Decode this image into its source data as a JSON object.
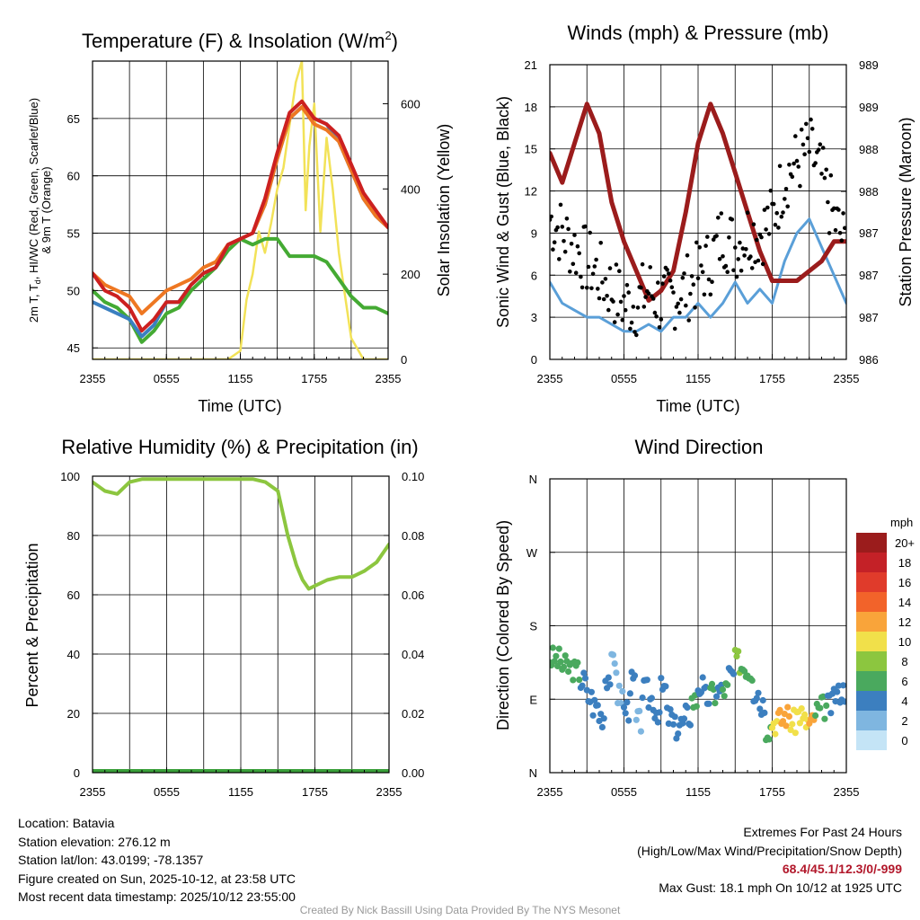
{
  "colors": {
    "temp": "#cc2020",
    "dew": "#44aa33",
    "hiwc": "#3a7fc0",
    "temp9m": "#ee7722",
    "solar": "#f2e258",
    "wind": "#5a9fd8",
    "gust": "#000000",
    "pressure": "#9b1c1c",
    "rh": "#8cc63f",
    "precip": "#3aa03a"
  },
  "time_ticks": [
    "2355",
    "0555",
    "1155",
    "1755",
    "2355"
  ],
  "charts": {
    "temp": {
      "title": "Temperature (F) & Insolation (W/m",
      "title_sup": "2",
      "title_end": ")",
      "ylabel_line1": "2m T, T",
      "ylabel_sub": "d",
      "ylabel_line1_end": ", HI/WC (Red, Green, Scarlet/Blue)",
      "ylabel_line2": "& 9m T (Orange)",
      "ylabel_right": "Solar Insolation (Yellow)",
      "xlabel": "Time (UTC)",
      "left_ticks": [
        "45",
        "50",
        "55",
        "60",
        "65"
      ],
      "right_ticks": [
        "0",
        "200",
        "400",
        "600"
      ]
    },
    "wind": {
      "title": "Winds (mph) & Pressure (mb)",
      "ylabel_left": "Sonic Wind & Gust (Blue, Black)",
      "ylabel_right": "Station Pressure (Maroon)",
      "xlabel": "Time (UTC)",
      "left_ticks": [
        "0",
        "3",
        "6",
        "9",
        "12",
        "15",
        "18",
        "21"
      ],
      "right_ticks": [
        "986",
        "987",
        "987",
        "987",
        "988",
        "988",
        "989",
        "989"
      ]
    },
    "rh": {
      "title": "Relative Humidity (%) & Precipitation (in)",
      "ylabel_left": "Percent & Precipitation",
      "left_ticks": [
        "0",
        "20",
        "40",
        "60",
        "80",
        "100"
      ],
      "right_ticks": [
        "0.00",
        "0.02",
        "0.04",
        "0.06",
        "0.08",
        "0.10"
      ]
    },
    "dir": {
      "title": "Wind Direction",
      "ylabel_left": "Direction (Colored By Speed)",
      "left_ticks": [
        "N",
        "E",
        "S",
        "W",
        "N"
      ],
      "legend_title": "mph",
      "legend_labels": [
        "20+",
        "18",
        "16",
        "14",
        "12",
        "10",
        "8",
        "6",
        "4",
        "2",
        "0"
      ],
      "legend_colors": [
        "#9b1c1c",
        "#c42127",
        "#e03b2b",
        "#f2632a",
        "#f9a43a",
        "#f1e04a",
        "#8cc63f",
        "#4aa95e",
        "#3c7fbf",
        "#7fb6e0",
        "#c4e4f6"
      ]
    }
  },
  "chart_data": [
    {
      "type": "line",
      "title": "Temperature (F) & Insolation (W/m2)",
      "xlabel": "Time (UTC)",
      "x_ticks": [
        "2355",
        "0555",
        "1155",
        "1755",
        "2355"
      ],
      "ylim": [
        44,
        70
      ],
      "y2lim": [
        0,
        700
      ],
      "series": [
        {
          "name": "2m T (Red)",
          "axis": "left",
          "t": [
            0,
            1,
            2,
            3,
            4,
            5,
            6,
            7,
            8,
            9,
            10,
            11,
            12,
            13,
            14,
            15,
            16,
            17,
            18,
            19,
            20,
            21,
            22,
            23,
            24
          ],
          "values": [
            51.5,
            50,
            49.5,
            48.5,
            46.5,
            47.5,
            49,
            49,
            50.5,
            51.5,
            52,
            54,
            54.5,
            55,
            58,
            62,
            65.5,
            66.5,
            65,
            64.5,
            63.5,
            61,
            58.5,
            57,
            55.5
          ]
        },
        {
          "name": "Dewpoint T (Green)",
          "axis": "left",
          "t": [
            0,
            1,
            2,
            3,
            4,
            5,
            6,
            7,
            8,
            9,
            10,
            11,
            12,
            13,
            14,
            15,
            16,
            17,
            18,
            19,
            20,
            21,
            22,
            23,
            24
          ],
          "values": [
            50,
            49,
            48.5,
            47.5,
            45.5,
            46.5,
            48,
            48.5,
            50,
            51,
            52,
            53.5,
            54.5,
            54,
            54.5,
            54.5,
            53,
            53,
            53,
            52.5,
            51,
            49.5,
            48.5,
            48.5,
            48
          ]
        },
        {
          "name": "HI/WC (Scarlet/Blue)",
          "axis": "left",
          "t": [
            0,
            1,
            2,
            3,
            4,
            5,
            6,
            7,
            8,
            9,
            10,
            11,
            12,
            13,
            14,
            15,
            16,
            17,
            18,
            19,
            20,
            21,
            22,
            23,
            24
          ],
          "values": [
            49,
            48.5,
            48,
            47.5,
            46,
            47,
            49,
            49,
            50.5,
            51.5,
            52,
            54,
            54.5,
            55,
            57.5,
            61.5,
            65,
            66,
            65,
            64.5,
            63,
            60.5,
            58,
            56.5,
            55.5
          ]
        },
        {
          "name": "9m T (Orange)",
          "axis": "left",
          "t": [
            0,
            1,
            2,
            3,
            4,
            5,
            6,
            7,
            8,
            9,
            10,
            11,
            12,
            13,
            14,
            15,
            16,
            17,
            18,
            19,
            20,
            21,
            22,
            23,
            24
          ],
          "values": [
            51.5,
            50.5,
            50,
            49.5,
            48,
            49,
            50,
            50.5,
            51,
            52,
            52.5,
            54,
            54.5,
            55,
            57.5,
            61.5,
            65,
            66,
            64.5,
            64,
            63,
            60.5,
            58,
            56.5,
            55.5
          ]
        },
        {
          "name": "Solar Insolation (Yellow)",
          "axis": "right",
          "t": [
            0,
            11,
            12,
            12.5,
            13,
            13.5,
            14,
            14.5,
            15,
            15.5,
            16,
            16.5,
            17,
            17.3,
            17.6,
            18,
            18.5,
            19,
            19.5,
            20,
            20.5,
            21,
            22,
            24
          ],
          "values": [
            0,
            0,
            20,
            140,
            200,
            300,
            250,
            320,
            400,
            450,
            550,
            650,
            700,
            350,
            500,
            600,
            300,
            520,
            400,
            250,
            150,
            50,
            0,
            0
          ]
        }
      ]
    },
    {
      "type": "line",
      "title": "Winds (mph) & Pressure (mb)",
      "xlabel": "Time (UTC)",
      "x_ticks": [
        "2355",
        "0555",
        "1155",
        "1755",
        "2355"
      ],
      "ylim": [
        0,
        21
      ],
      "y2lim": [
        986,
        989
      ],
      "series": [
        {
          "name": "Sonic Wind (Blue)",
          "axis": "left",
          "t": [
            0,
            1,
            2,
            3,
            4,
            5,
            6,
            7,
            8,
            9,
            10,
            11,
            12,
            13,
            14,
            15,
            16,
            17,
            18,
            19,
            20,
            21,
            22,
            23,
            24
          ],
          "values": [
            5.5,
            4,
            3.5,
            3,
            3,
            2.5,
            2,
            2,
            2.5,
            2,
            3,
            3,
            4,
            3,
            4,
            5.5,
            4,
            5,
            4,
            7,
            9,
            10,
            8,
            6,
            4
          ]
        },
        {
          "name": "Gust (Black)",
          "axis": "left",
          "t": [
            0,
            1,
            2,
            3,
            4,
            5,
            6,
            7,
            8,
            9,
            10,
            11,
            12,
            13,
            14,
            15,
            16,
            17,
            18,
            19,
            20,
            21,
            22,
            23,
            24
          ],
          "values": [
            10,
            9,
            8,
            7,
            6,
            5,
            4,
            4,
            5,
            4,
            4.5,
            5,
            6,
            7,
            9,
            8,
            9,
            9,
            10,
            13,
            14,
            15,
            13,
            10,
            8
          ]
        },
        {
          "name": "Station Pressure (Maroon)",
          "axis": "right",
          "t": [
            0,
            1,
            2,
            3,
            4,
            5,
            6,
            7,
            8,
            9,
            10,
            11,
            12,
            13,
            14,
            15,
            16,
            17,
            18,
            19,
            20,
            21,
            22,
            23,
            24
          ],
          "values": [
            988.1,
            987.8,
            988.2,
            988.6,
            988.3,
            987.6,
            987.2,
            986.9,
            986.6,
            986.7,
            986.9,
            987.5,
            988.2,
            988.6,
            988.3,
            987.9,
            987.5,
            987.1,
            986.8,
            986.8,
            986.8,
            986.9,
            987,
            987.2,
            987.2
          ]
        }
      ]
    },
    {
      "type": "line",
      "title": "Relative Humidity (%) & Precipitation (in)",
      "x_ticks": [
        "2355",
        "0555",
        "1155",
        "1755",
        "2355"
      ],
      "ylim": [
        0,
        100
      ],
      "y2lim": [
        0,
        0.1
      ],
      "series": [
        {
          "name": "Relative Humidity",
          "axis": "left",
          "t": [
            0,
            1,
            2,
            3,
            4,
            5,
            6,
            7,
            8,
            9,
            10,
            11,
            12,
            13,
            14,
            15,
            15.8,
            16.5,
            17,
            17.5,
            18,
            19,
            20,
            21,
            22,
            23,
            24
          ],
          "values": [
            98,
            95,
            94,
            98,
            99,
            99,
            99,
            99,
            99,
            99,
            99,
            99,
            99,
            99,
            98,
            95,
            80,
            70,
            65,
            62,
            63,
            65,
            66,
            66,
            68,
            71,
            77
          ]
        },
        {
          "name": "Precipitation",
          "axis": "right",
          "t": [
            0,
            24
          ],
          "values": [
            0,
            0
          ]
        }
      ]
    },
    {
      "type": "scatter",
      "title": "Wind Direction",
      "ylabel": "Direction (Colored By Speed)",
      "x_ticks": [
        "2355",
        "0555",
        "1155",
        "1755",
        "2355"
      ],
      "y_ticks": [
        "N",
        "E",
        "S",
        "W",
        "N"
      ],
      "ylim": [
        0,
        360
      ],
      "points_t": [
        0.0,
        0.5,
        1.0,
        1.5,
        2.0,
        2.5,
        3.0,
        3.5,
        4.0,
        4.5,
        5.0,
        5.5,
        6.0,
        6.5,
        7.0,
        7.5,
        8.0,
        8.5,
        9.0,
        9.5,
        10.0,
        10.5,
        11.0,
        11.5,
        12.0,
        12.5,
        13.0,
        13.5,
        14.0,
        14.5,
        15.0,
        15.5,
        16.0,
        16.5,
        17.0,
        17.5,
        18.0,
        18.5,
        19.0,
        19.5,
        20.0,
        20.5,
        21.0,
        21.5,
        22.0,
        22.5,
        23.0,
        23.5
      ],
      "points_dir": [
        140,
        138,
        130,
        128,
        124,
        112,
        92,
        82,
        70,
        118,
        132,
        95,
        78,
        110,
        62,
        100,
        90,
        76,
        102,
        68,
        55,
        60,
        70,
        88,
        106,
        92,
        96,
        100,
        102,
        120,
        136,
        130,
        125,
        100,
        85,
        55,
        62,
        65,
        70,
        62,
        72,
        62,
        60,
        75,
        80,
        82,
        96,
        100
      ],
      "points_speed": [
        6,
        6,
        5,
        6,
        5,
        4,
        4,
        3,
        4,
        3,
        1,
        2,
        3,
        3,
        2,
        4,
        4,
        4,
        3,
        4,
        3,
        4,
        4,
        5,
        4,
        4,
        5,
        4,
        5,
        4,
        7,
        6,
        6,
        4,
        4,
        5,
        10,
        12,
        11,
        10,
        10,
        9,
        11,
        6,
        5,
        4,
        4,
        4
      ]
    }
  ],
  "footer": {
    "location": "Location: Batavia",
    "elevation": "Station elevation: 276.12 m",
    "latlon": "Station lat/lon: 43.0199; -78.1357",
    "created": "Figure created on Sun, 2025-10-12, at 23:58 UTC",
    "recent": "Most recent data timestamp: 2025/10/12 23:55:00",
    "extremes_title": "Extremes For Past 24 Hours",
    "extremes_legend": "(High/Low/Max Wind/Precipitation/Snow Depth)",
    "extremes_values": "68.4/45.1/12.3/0/-999",
    "max_gust": "Max Gust: 18.1 mph On 10/12 at 1925 UTC",
    "credit": "Created By Nick Bassill Using Data Provided By The NYS Mesonet"
  }
}
